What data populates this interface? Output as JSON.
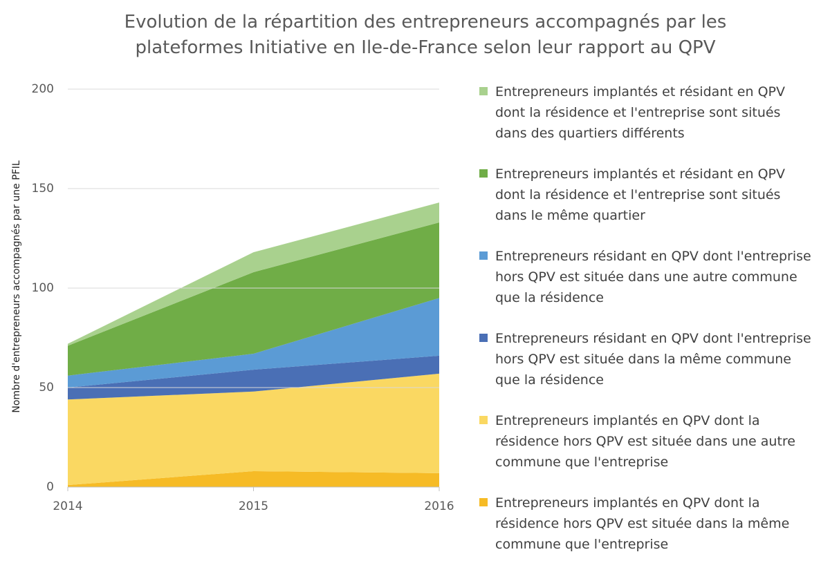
{
  "chart_data": {
    "type": "stacked_area",
    "title": "Evolution de la répartition des entrepreneurs accompagnés par les plateformes Initiative en Ile-de-France selon leur rapport au QPV",
    "y_label": "Nombre d'entrepreneurs accompagnés par une PFIL",
    "x": [
      2014,
      2015,
      2016
    ],
    "xlim": [
      2014,
      2016
    ],
    "xticks": [
      2014,
      2015,
      2016
    ],
    "ylim": [
      0,
      200
    ],
    "yticks": [
      0,
      50,
      100,
      150,
      200
    ],
    "grid": true,
    "legend": "right",
    "series": [
      {
        "name": "Entrepreneurs implantés en QPV dont la résidence hors QPV est située dans la même commune que l'entreprise",
        "color": "#f6bb26",
        "values": [
          1,
          8,
          7
        ]
      },
      {
        "name": "Entrepreneurs implantés en QPV dont la résidence hors QPV est située dans une autre commune que l'entreprise",
        "color": "#fad862",
        "values": [
          43,
          40,
          50
        ]
      },
      {
        "name": "Entrepreneurs résidant en QPV dont l'entreprise hors QPV est située dans la même commune que la résidence",
        "color": "#4a6fb5",
        "values": [
          6,
          11,
          9
        ]
      },
      {
        "name": "Entrepreneurs résidant en QPV dont l'entreprise hors QPV est située dans une autre commune que la résidence",
        "color": "#5b9bd5",
        "values": [
          6,
          8,
          29
        ]
      },
      {
        "name": "Entrepreneurs implantés et résidant en QPV dont la résidence et l'entreprise sont situés dans le même quartier",
        "color": "#70ad47",
        "values": [
          15,
          41,
          38
        ]
      },
      {
        "name": "Entrepreneurs implantés et résidant en QPV dont la résidence et l'entreprise sont situés dans des quartiers différents",
        "color": "#a9d18e",
        "values": [
          1,
          10,
          10
        ]
      }
    ]
  }
}
